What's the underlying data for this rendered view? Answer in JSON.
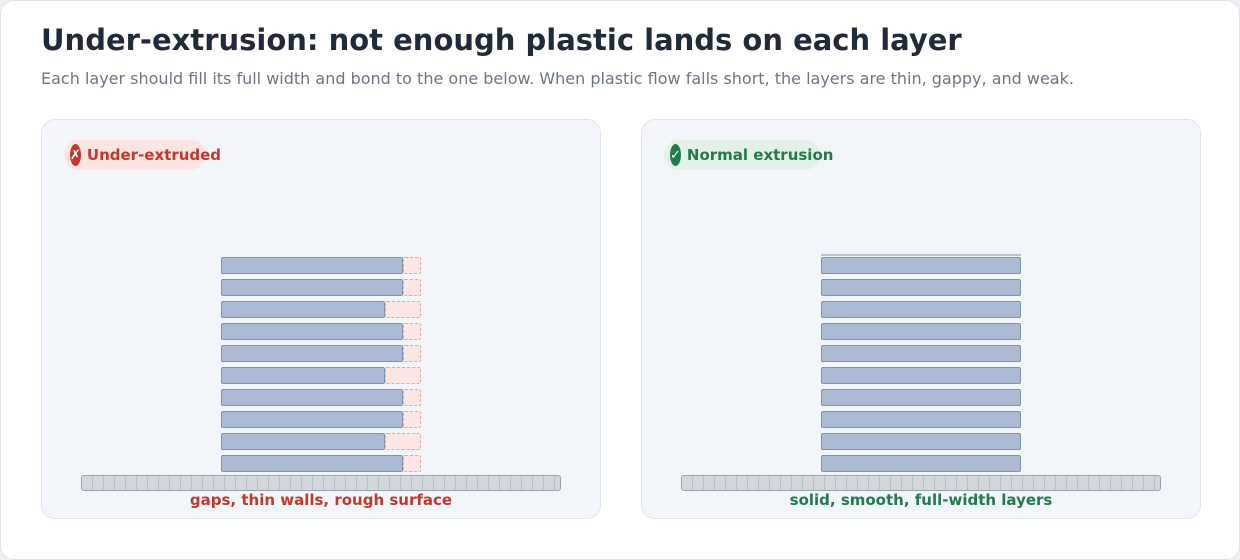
{
  "title": "Under-extrusion: not enough plastic lands on each layer",
  "subtitle": "Each layer should fill its full width and bond to the one below. When plastic flow falls short, the layers are thin, gappy, and weak.",
  "panels": {
    "under": {
      "badge_icon": "✗",
      "badge_label": "Under-extruded",
      "caption": "gaps, thin walls, rough surface",
      "layer_fill_fraction": [
        0.91,
        0.82,
        0.91,
        0.91,
        0.82,
        0.91,
        0.91,
        0.82,
        0.91,
        0.91
      ]
    },
    "normal": {
      "badge_icon": "✓",
      "badge_label": "Normal extrusion",
      "caption": "solid, smooth, full-width layers",
      "layer_fill_fraction": [
        1,
        1,
        1,
        1,
        1,
        1,
        1,
        1,
        1,
        1
      ]
    }
  },
  "colors": {
    "bad": "#c0392b",
    "good": "#237a4a",
    "layer": "#aabbd3",
    "gap": "#fde6e4"
  }
}
